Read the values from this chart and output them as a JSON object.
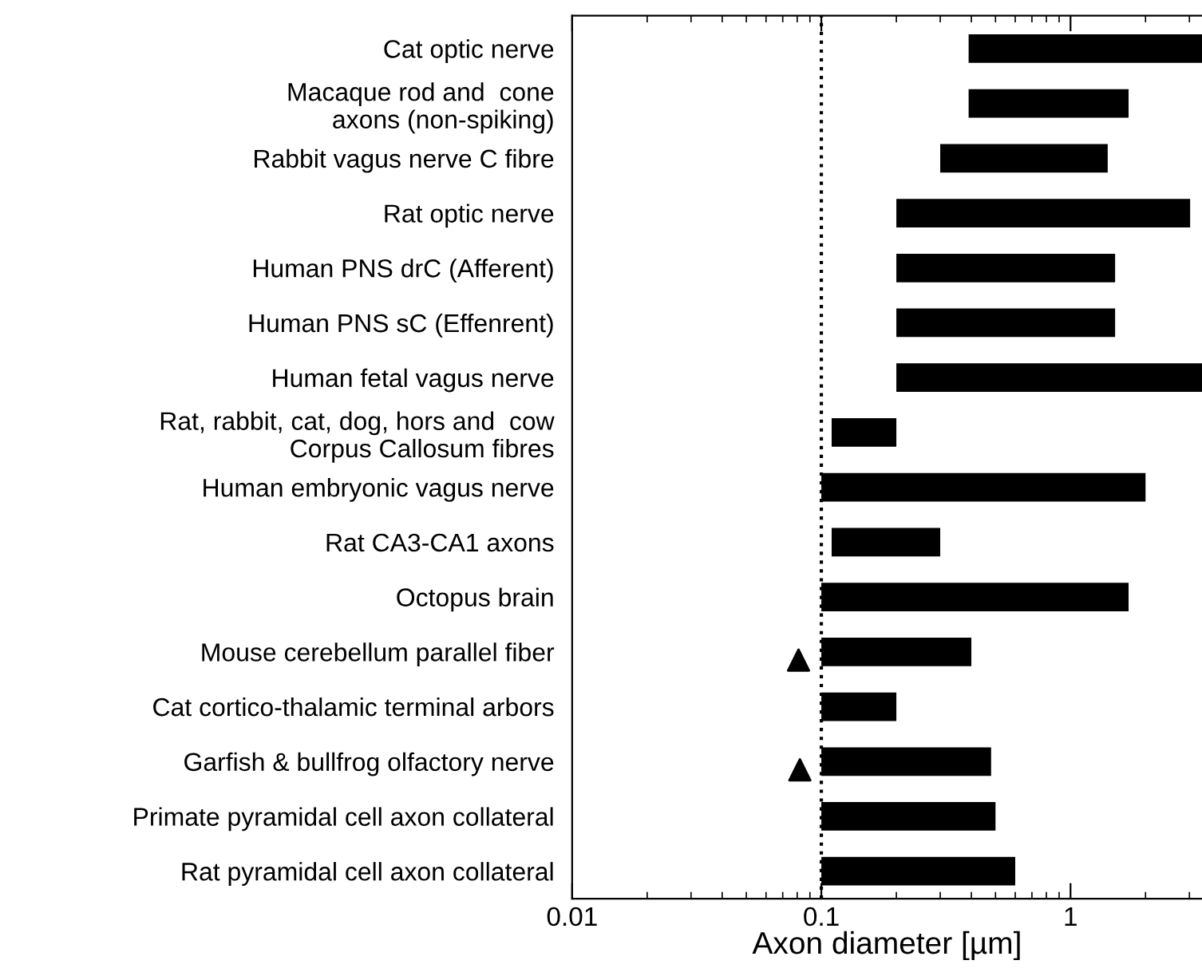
{
  "chart_data": {
    "type": "bar",
    "orientation": "horizontal",
    "xlabel": "Axon diameter [µm]",
    "log": "x",
    "xlim": [
      0.01,
      3.37
    ],
    "xticks": [
      0.01,
      0.1,
      1
    ],
    "grid": false,
    "legend": false,
    "categories": [
      "Cat optic nerve",
      "Macaque rod and  cone\n axons (non-spiking)",
      "Rabbit vagus nerve C fibre",
      "Rat optic nerve",
      "Human PNS drC (Afferent)",
      "Human PNS sC (Effenrent)",
      "Human fetal vagus nerve",
      "Rat, rabbit, cat, dog, hors and  cow\nCorpus Callosum fibres",
      "Human embryonic vagus nerve",
      "Rat CA3-CA1 axons",
      "Octopus brain",
      "Mouse cerebellum parallel fiber",
      "Cat cortico-thalamic terminal arbors",
      "Garfish & bullfrog olfactory nerve",
      "Primate pyramidal cell axon collateral",
      "Rat pyramidal cell axon collateral"
    ],
    "series": [
      {
        "color": "#000000",
        "base": [
          0.39,
          0.39,
          0.3,
          0.2,
          0.2,
          0.2,
          0.2,
          0.11,
          0.1,
          0.11,
          0.1,
          0.1,
          0.1,
          0.1,
          0.1,
          0.1
        ],
        "values": [
          2.98,
          1.32,
          1.11,
          2.82,
          1.31,
          1.31,
          3.17,
          0.09,
          1.9,
          0.19,
          1.61,
          0.3,
          0.1,
          0.38,
          0.4,
          0.5
        ]
      },
      {
        "type": "scatter",
        "color": "#000000",
        "marker": "triangle",
        "values": [
          null,
          null,
          null,
          null,
          null,
          null,
          null,
          null,
          null,
          null,
          null,
          0.081,
          null,
          0.082,
          null,
          null
        ]
      }
    ],
    "ref_lines": [
      {
        "axis": "x",
        "value": 0.1,
        "color": "#000000",
        "line_style": "dotted"
      }
    ]
  }
}
